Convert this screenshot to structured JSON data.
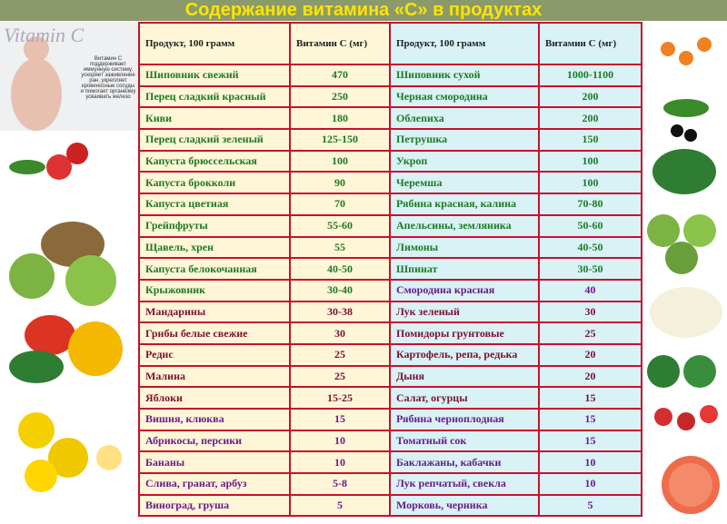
{
  "header": {
    "title": "Содержание витамина «С» в продуктах"
  },
  "side_note": {
    "logo": "Vitamin C",
    "text": "Витамин С поддерживает иммунную систему, ускоряет заживление ран, укрепляет кровеносные сосуды и помогает организму усваивать железо"
  },
  "table": {
    "columns": [
      "Продукт, 100 грамм",
      "Витамин С (мг)",
      "Продукт, 100 грамм",
      "Витамин С (мг)"
    ],
    "rows": [
      [
        "Шиповник свежий",
        470,
        "Шиповник сухой",
        "1000-1100"
      ],
      [
        "Перец сладкий красный",
        250,
        "Черная смородина",
        200
      ],
      [
        "Киви",
        180,
        "Облепиха",
        200
      ],
      [
        "Перец сладкий зеленый",
        "125-150",
        "Петрушка",
        150
      ],
      [
        "Капуста брюссельская",
        100,
        "Укроп",
        100
      ],
      [
        "Капуста брокколи",
        90,
        "Черемша",
        100
      ],
      [
        "Капуста цветная",
        70,
        "Рябина красная, калина",
        "70-80"
      ],
      [
        "Грейпфруты",
        "55-60",
        "Апельсины, земляника",
        "50-60"
      ],
      [
        "Щавель, хрен",
        55,
        "Лимоны",
        "40-50"
      ],
      [
        "Капуста белокочанная",
        "40-50",
        "Шпинат",
        "30-50"
      ],
      [
        "Крыжовник",
        "30-40",
        "Смородина красная",
        40
      ],
      [
        "Мандарины",
        "30-38",
        "Лук зеленый",
        30
      ],
      [
        "Грибы белые свежие",
        30,
        "Помидоры грунтовые",
        25
      ],
      [
        "Редис",
        25,
        "Картофель, репа, редька",
        20
      ],
      [
        "Малина",
        25,
        "Дыня",
        20
      ],
      [
        "Яблоки",
        "15-25",
        "Салат, огурцы",
        15
      ],
      [
        "Вишня, клюква",
        15,
        "Рябина черноплодная",
        15
      ],
      [
        "Абрикосы, персики",
        10,
        "Томатный сок",
        15
      ],
      [
        "Бананы",
        10,
        "Баклажаны, кабачки",
        10
      ],
      [
        "Слива, гранат, арбуз",
        "5-8",
        "Лук репчатый, свекла",
        10
      ],
      [
        "Виноград, груша",
        5,
        "Морковь, черника",
        5
      ]
    ]
  }
}
